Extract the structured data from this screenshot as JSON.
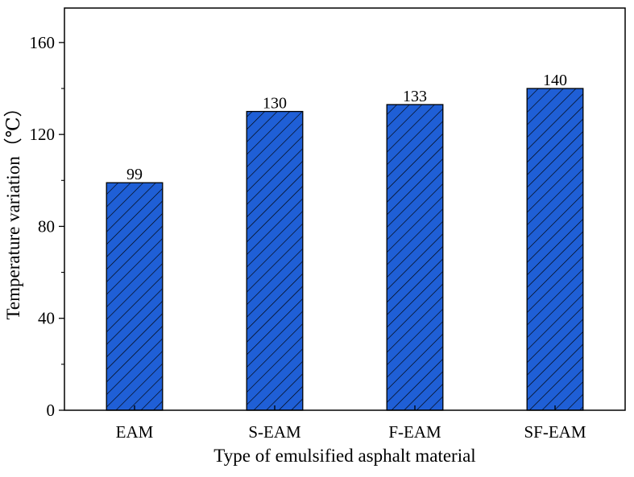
{
  "chart_data": {
    "type": "bar",
    "title": "",
    "xlabel": "Type of emulsified asphalt material",
    "ylabel": "Temperature variation（℃）",
    "categories": [
      "EAM",
      "S-EAM",
      "F-EAM",
      "SF-EAM"
    ],
    "values": [
      99,
      130,
      133,
      140
    ],
    "data_labels": [
      "99",
      "130",
      "133",
      "140"
    ],
    "ylim": [
      0,
      175
    ],
    "y_ticks": [
      0,
      40,
      80,
      120,
      160
    ],
    "y_tick_labels": [
      "0",
      "40",
      "80",
      "120",
      "160"
    ],
    "y_minor_ticks": [
      20,
      60,
      100,
      140
    ],
    "grid": false,
    "legend": "none",
    "bar_fill": "#1f5fd6",
    "bar_pattern": "diagonal hatch",
    "bar_edge": "#000000"
  }
}
